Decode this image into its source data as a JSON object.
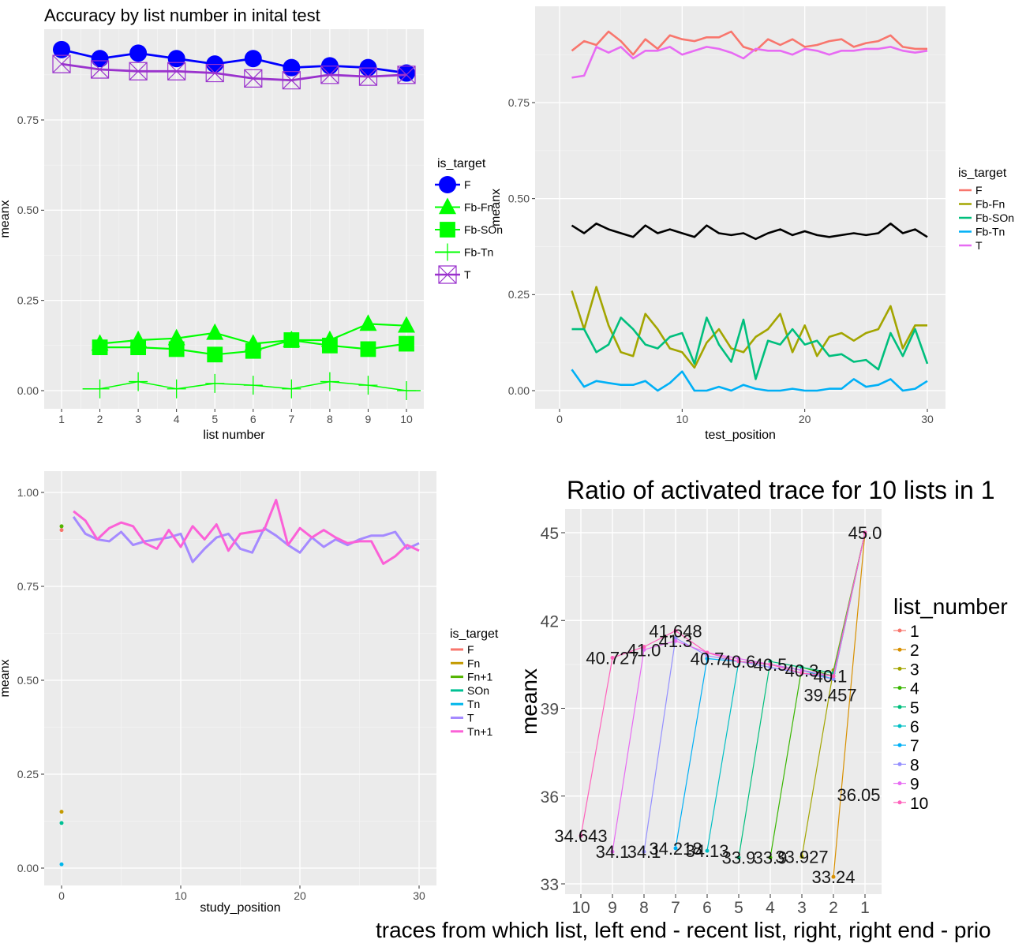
{
  "chart_data": [
    {
      "type": "line",
      "title": "Accuracy by list number in inital test",
      "xlabel": "list number",
      "ylabel": "meanx",
      "xlim": [
        1,
        10
      ],
      "ylim": [
        0,
        1
      ],
      "x_ticks": [
        "1",
        "2",
        "3",
        "4",
        "5",
        "6",
        "7",
        "8",
        "9",
        "10"
      ],
      "y_ticks": [
        "0.00",
        "0.25",
        "0.50",
        "0.75"
      ],
      "grid": true,
      "legend_title": "is_target",
      "legend_position": "right",
      "series": [
        {
          "name": "F",
          "color": "#0000ff",
          "marker": "circle",
          "x": [
            1,
            2,
            3,
            4,
            5,
            6,
            7,
            8,
            9,
            10
          ],
          "y": [
            0.945,
            0.92,
            0.935,
            0.92,
            0.905,
            0.92,
            0.895,
            0.9,
            0.895,
            0.88
          ]
        },
        {
          "name": "Fb-Fn",
          "color": "#00ff00",
          "marker": "triangle",
          "x": [
            2,
            3,
            4,
            5,
            6,
            7,
            8,
            9,
            10
          ],
          "y": [
            0.13,
            0.14,
            0.145,
            0.16,
            0.13,
            0.14,
            0.14,
            0.185,
            0.18
          ]
        },
        {
          "name": "Fb-SOn",
          "color": "#00ff00",
          "marker": "square",
          "x": [
            2,
            3,
            4,
            5,
            6,
            7,
            8,
            9,
            10
          ],
          "y": [
            0.12,
            0.12,
            0.115,
            0.1,
            0.11,
            0.14,
            0.125,
            0.115,
            0.13
          ]
        },
        {
          "name": "Fb-Tn",
          "color": "#00ff00",
          "marker": "plus",
          "x": [
            2,
            3,
            4,
            5,
            6,
            7,
            8,
            9,
            10
          ],
          "y": [
            0.005,
            0.025,
            0.005,
            0.02,
            0.015,
            0.005,
            0.025,
            0.015,
            0.0
          ]
        },
        {
          "name": "T",
          "color": "#9a32cd",
          "marker": "boxx",
          "x": [
            1,
            2,
            3,
            4,
            5,
            6,
            7,
            8,
            9,
            10
          ],
          "y": [
            0.905,
            0.89,
            0.885,
            0.885,
            0.88,
            0.865,
            0.86,
            0.875,
            0.87,
            0.875
          ]
        }
      ]
    },
    {
      "type": "line",
      "title": "",
      "xlabel": "test_position",
      "ylabel": "meanx",
      "xlim": [
        0,
        30
      ],
      "ylim": [
        0,
        1
      ],
      "x_ticks": [
        "0",
        "10",
        "20",
        "30"
      ],
      "y_ticks": [
        "0.00",
        "0.25",
        "0.50",
        "0.75"
      ],
      "grid": true,
      "legend_title": "is_target",
      "legend_position": "right",
      "series": [
        {
          "name": "F",
          "color": "#f8766d",
          "y": [
            0.885,
            0.91,
            0.9,
            0.935,
            0.91,
            0.875,
            0.915,
            0.89,
            0.925,
            0.915,
            0.91,
            0.92,
            0.92,
            0.935,
            0.895,
            0.885,
            0.915,
            0.9,
            0.915,
            0.895,
            0.9,
            0.91,
            0.915,
            0.895,
            0.905,
            0.91,
            0.925,
            0.895,
            0.89,
            0.89
          ]
        },
        {
          "name": "Fb-Fn",
          "color": "#a3a500",
          "y": [
            0.26,
            0.16,
            0.27,
            0.17,
            0.1,
            0.09,
            0.2,
            0.16,
            0.11,
            0.1,
            0.06,
            0.125,
            0.16,
            0.11,
            0.1,
            0.14,
            0.16,
            0.2,
            0.1,
            0.17,
            0.09,
            0.14,
            0.15,
            0.13,
            0.15,
            0.16,
            0.22,
            0.11,
            0.17,
            0.17
          ]
        },
        {
          "name": "Fb-SOn",
          "color": "#00bf7d",
          "y": [
            0.16,
            0.16,
            0.1,
            0.12,
            0.19,
            0.16,
            0.12,
            0.11,
            0.14,
            0.15,
            0.07,
            0.19,
            0.12,
            0.075,
            0.185,
            0.03,
            0.13,
            0.12,
            0.16,
            0.12,
            0.13,
            0.09,
            0.095,
            0.075,
            0.08,
            0.055,
            0.15,
            0.09,
            0.16,
            0.07
          ]
        },
        {
          "name": "Fb-Tn",
          "color": "#00b0f6",
          "y": [
            0.055,
            0.01,
            0.025,
            0.02,
            0.015,
            0.015,
            0.025,
            0.0,
            0.02,
            0.05,
            0.0,
            0.0,
            0.01,
            0.0,
            0.015,
            0.005,
            0.0,
            0.0,
            0.005,
            0.0,
            0.0,
            0.005,
            0.005,
            0.03,
            0.01,
            0.015,
            0.03,
            0.0,
            0.005,
            0.025
          ]
        },
        {
          "name": "T",
          "color": "#e76bf3",
          "y": [
            0.815,
            0.82,
            0.895,
            0.88,
            0.895,
            0.865,
            0.885,
            0.885,
            0.895,
            0.875,
            0.885,
            0.895,
            0.89,
            0.88,
            0.865,
            0.89,
            0.885,
            0.885,
            0.875,
            0.89,
            0.885,
            0.875,
            0.885,
            0.885,
            0.89,
            0.89,
            0.895,
            0.885,
            0.88,
            0.885
          ]
        },
        {
          "color": "#000000",
          "y": [
            0.43,
            0.41,
            0.435,
            0.42,
            0.41,
            0.4,
            0.43,
            0.41,
            0.42,
            0.41,
            0.4,
            0.43,
            0.41,
            0.405,
            0.41,
            0.395,
            0.41,
            0.42,
            0.405,
            0.415,
            0.405,
            0.4,
            0.405,
            0.41,
            0.405,
            0.41,
            0.435,
            0.41,
            0.42,
            0.4
          ]
        }
      ]
    },
    {
      "type": "line",
      "title": "",
      "xlabel": "study_position",
      "ylabel": "meanx",
      "xlim": [
        0,
        30
      ],
      "ylim": [
        0,
        1
      ],
      "x_ticks": [
        "0",
        "10",
        "20",
        "30"
      ],
      "y_ticks": [
        "0.00",
        "0.25",
        "0.50",
        "0.75",
        "1.00"
      ],
      "grid": true,
      "legend_title": "is_target",
      "legend_position": "right",
      "points": [
        {
          "name": "F",
          "color": "#f8766d",
          "x": 0,
          "y": 0.9
        },
        {
          "name": "Fn",
          "color": "#c49a00",
          "x": 0,
          "y": 0.15
        },
        {
          "name": "Fn+1",
          "color": "#53b400",
          "x": 0,
          "y": 0.91
        },
        {
          "name": "SOn",
          "color": "#00c094",
          "x": 0,
          "y": 0.12
        },
        {
          "name": "Tn",
          "color": "#00b6eb",
          "x": 0,
          "y": 0.01
        }
      ],
      "series": [
        {
          "name": "T",
          "color": "#a58aff",
          "x": [
            1,
            2,
            3,
            4,
            5,
            6,
            7,
            8,
            9,
            10,
            11,
            12,
            13,
            14,
            15,
            16,
            17,
            18,
            19,
            20,
            21,
            22,
            23,
            24,
            25,
            26,
            27,
            28,
            29,
            30
          ],
          "y": [
            0.935,
            0.89,
            0.875,
            0.87,
            0.895,
            0.86,
            0.87,
            0.875,
            0.88,
            0.89,
            0.815,
            0.85,
            0.88,
            0.89,
            0.85,
            0.84,
            0.905,
            0.885,
            0.86,
            0.84,
            0.88,
            0.855,
            0.875,
            0.86,
            0.875,
            0.885,
            0.885,
            0.895,
            0.85,
            0.865
          ]
        },
        {
          "name": "Tn+1",
          "color": "#fb61d7",
          "x": [
            1,
            2,
            3,
            4,
            5,
            6,
            7,
            8,
            9,
            10,
            11,
            12,
            13,
            14,
            15,
            16,
            17,
            18,
            19,
            20,
            21,
            22,
            23,
            24,
            25,
            26,
            27,
            28,
            29,
            30
          ],
          "y": [
            0.95,
            0.925,
            0.875,
            0.905,
            0.92,
            0.91,
            0.865,
            0.85,
            0.9,
            0.855,
            0.91,
            0.875,
            0.915,
            0.845,
            0.89,
            0.895,
            0.9,
            0.98,
            0.86,
            0.905,
            0.88,
            0.9,
            0.88,
            0.865,
            0.87,
            0.87,
            0.81,
            0.83,
            0.86,
            0.845
          ]
        }
      ]
    },
    {
      "type": "line",
      "title": "Ratio of activated trace for 10 lists in 1",
      "xlabel": "traces from which list, left end - recent list, right, right end - prio",
      "ylabel": "meanx",
      "categories": [
        "10",
        "9",
        "8",
        "7",
        "6",
        "5",
        "4",
        "3",
        "2",
        "1"
      ],
      "ylim": [
        33,
        46
      ],
      "y_ticks": [
        "33",
        "36",
        "39",
        "42",
        "45"
      ],
      "grid": true,
      "legend_title": "list_number",
      "legend_position": "right",
      "series": [
        {
          "name": "1",
          "color": "#f8766d",
          "points": []
        },
        {
          "name": "2",
          "color": "#d89000",
          "points": [
            [
              9,
              33.24
            ],
            [
              10,
              45.0
            ]
          ]
        },
        {
          "name": "3",
          "color": "#a3a500",
          "points": [
            [
              8,
              33.927
            ],
            [
              9,
              40.3
            ],
            [
              10,
              45.0
            ]
          ]
        },
        {
          "name": "4",
          "color": "#39b600",
          "points": [
            [
              7,
              33.9
            ],
            [
              8,
              40.4
            ],
            [
              9,
              40.1
            ],
            [
              10,
              45.0
            ]
          ]
        },
        {
          "name": "5",
          "color": "#00bf7d",
          "points": [
            [
              6,
              33.9
            ],
            [
              7,
              40.6
            ],
            [
              8,
              40.4
            ],
            [
              9,
              40.2
            ],
            [
              10,
              45.0
            ]
          ]
        },
        {
          "name": "6",
          "color": "#00bfc4",
          "points": [
            [
              5,
              34.13
            ],
            [
              6,
              40.6
            ],
            [
              7,
              40.5
            ],
            [
              8,
              40.3
            ],
            [
              9,
              40.0
            ],
            [
              10,
              45.0
            ]
          ]
        },
        {
          "name": "7",
          "color": "#00b0f6",
          "points": [
            [
              4,
              34.218
            ],
            [
              5,
              40.7
            ],
            [
              6,
              40.6
            ],
            [
              7,
              40.5
            ],
            [
              8,
              40.3
            ],
            [
              9,
              40.1
            ],
            [
              10,
              45.0
            ]
          ]
        },
        {
          "name": "8",
          "color": "#9590ff",
          "points": [
            [
              3,
              34.1
            ],
            [
              4,
              41.4
            ],
            [
              5,
              40.8
            ],
            [
              6,
              40.6
            ],
            [
              7,
              40.4
            ],
            [
              8,
              40.2
            ],
            [
              9,
              40.0
            ],
            [
              10,
              45.0
            ]
          ]
        },
        {
          "name": "9",
          "color": "#e76bf3",
          "points": [
            [
              2,
              34.1
            ],
            [
              3,
              41.0
            ],
            [
              4,
              41.3
            ],
            [
              5,
              40.9
            ],
            [
              6,
              40.7
            ],
            [
              7,
              40.5
            ],
            [
              8,
              40.3
            ],
            [
              9,
              40.1
            ],
            [
              10,
              45.0
            ]
          ]
        },
        {
          "name": "10",
          "color": "#ff62bc",
          "points": [
            [
              1,
              34.643
            ],
            [
              2,
              40.727
            ],
            [
              3,
              41.1
            ],
            [
              4,
              41.648
            ],
            [
              5,
              40.9
            ],
            [
              6,
              40.6
            ],
            [
              7,
              40.5
            ],
            [
              8,
              40.2
            ],
            [
              9,
              40.1
            ],
            [
              10,
              45.0
            ]
          ]
        }
      ],
      "data_labels": [
        {
          "text": "34.643",
          "x": 1,
          "y": 34.643
        },
        {
          "text": "40.727",
          "x": 2,
          "y": 40.727
        },
        {
          "text": "34.1",
          "x": 2,
          "y": 34.1
        },
        {
          "text": "34.1",
          "x": 3,
          "y": 34.1
        },
        {
          "text": "41.0",
          "x": 3,
          "y": 41.0
        },
        {
          "text": "41.648",
          "x": 4,
          "y": 41.648
        },
        {
          "text": "41.3",
          "x": 4,
          "y": 41.3
        },
        {
          "text": "34.218",
          "x": 4,
          "y": 34.218
        },
        {
          "text": "40.7",
          "x": 5,
          "y": 40.7
        },
        {
          "text": "34.13",
          "x": 5,
          "y": 34.13
        },
        {
          "text": "40.6",
          "x": 6,
          "y": 40.6
        },
        {
          "text": "33.9",
          "x": 6,
          "y": 33.9
        },
        {
          "text": "40.5",
          "x": 7,
          "y": 40.5
        },
        {
          "text": "33.9",
          "x": 7,
          "y": 33.9
        },
        {
          "text": "40.3",
          "x": 8,
          "y": 40.3
        },
        {
          "text": "33.927",
          "x": 8,
          "y": 33.927
        },
        {
          "text": "39.457",
          "x": 8.9,
          "y": 39.457
        },
        {
          "text": "40.1",
          "x": 8.9,
          "y": 40.1
        },
        {
          "text": "33.24",
          "x": 9,
          "y": 33.24
        },
        {
          "text": "36.05",
          "x": 9.8,
          "y": 36.05
        },
        {
          "text": "45.0",
          "x": 10,
          "y": 45.0
        }
      ]
    }
  ]
}
